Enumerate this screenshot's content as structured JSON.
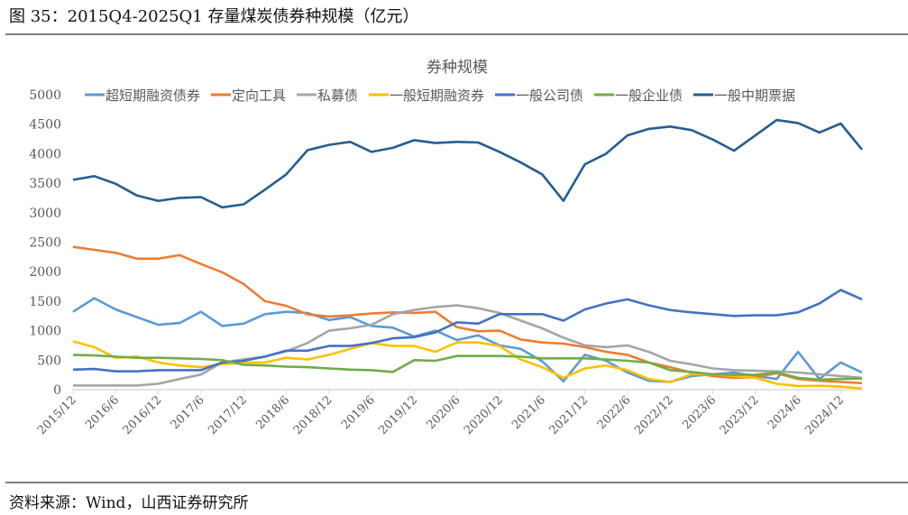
{
  "figure_title": "图 35：2015Q4-2025Q1 存量煤炭债券种规模（亿元）",
  "source": "资料来源：Wind，山西证券研究所",
  "chart_data": {
    "type": "line",
    "title": "券种规模",
    "xlabel": "",
    "ylabel": "",
    "ylim": [
      0,
      5000
    ],
    "yticks": [
      0,
      500,
      1000,
      1500,
      2000,
      2500,
      3000,
      3500,
      4000,
      4500,
      5000
    ],
    "legend_position": "top",
    "grid": false,
    "x": [
      "2015/12",
      "2016/3",
      "2016/6",
      "2016/9",
      "2016/12",
      "2017/3",
      "2017/6",
      "2017/9",
      "2017/12",
      "2018/3",
      "2018/6",
      "2018/9",
      "2018/12",
      "2019/3",
      "2019/6",
      "2019/9",
      "2019/12",
      "2020/3",
      "2020/6",
      "2020/9",
      "2020/12",
      "2021/3",
      "2021/6",
      "2021/9",
      "2021/12",
      "2022/3",
      "2022/6",
      "2022/9",
      "2022/12",
      "2023/3",
      "2023/6",
      "2023/9",
      "2023/12",
      "2024/3",
      "2024/6",
      "2024/9",
      "2024/12",
      "2025/3"
    ],
    "xtick_labels": [
      "2015/12",
      "2016/6",
      "2016/12",
      "2017/6",
      "2017/12",
      "2018/6",
      "2018/12",
      "2019/6",
      "2019/12",
      "2020/6",
      "2020/12",
      "2021/6",
      "2021/12",
      "2022/6",
      "2022/12",
      "2023/6",
      "2023/12",
      "2024/6",
      "2024/12"
    ],
    "series": [
      {
        "name": "超短期融资债券",
        "color": "#5b9bd5",
        "values": [
          1320,
          1550,
          1360,
          1230,
          1100,
          1130,
          1320,
          1080,
          1120,
          1280,
          1320,
          1300,
          1180,
          1230,
          1080,
          1050,
          900,
          1000,
          840,
          920,
          750,
          690,
          480,
          140,
          590,
          490,
          290,
          150,
          130,
          230,
          260,
          290,
          230,
          180,
          640,
          180,
          460,
          290
        ]
      },
      {
        "name": "定向工具",
        "color": "#ed7d31",
        "values": [
          2420,
          2370,
          2320,
          2220,
          2220,
          2280,
          2130,
          1990,
          1790,
          1500,
          1420,
          1275,
          1240,
          1260,
          1290,
          1310,
          1300,
          1320,
          1060,
          990,
          1000,
          850,
          800,
          780,
          720,
          640,
          590,
          460,
          380,
          290,
          230,
          200,
          210,
          280,
          180,
          150,
          130,
          110
        ]
      },
      {
        "name": "私募债",
        "color": "#a5a5a5",
        "values": [
          70,
          70,
          70,
          70,
          100,
          180,
          255,
          460,
          510,
          560,
          650,
          790,
          1000,
          1040,
          1100,
          1280,
          1350,
          1400,
          1430,
          1380,
          1300,
          1170,
          1040,
          880,
          750,
          720,
          750,
          640,
          490,
          430,
          360,
          330,
          320,
          310,
          290,
          260,
          230,
          200
        ]
      },
      {
        "name": "一般短期融资券",
        "color": "#ffc000",
        "values": [
          820,
          720,
          540,
          560,
          460,
          410,
          380,
          430,
          460,
          460,
          540,
          510,
          590,
          690,
          790,
          740,
          740,
          640,
          800,
          800,
          740,
          510,
          380,
          200,
          360,
          410,
          330,
          180,
          130,
          260,
          260,
          230,
          200,
          100,
          60,
          65,
          50,
          20
        ]
      },
      {
        "name": "一般公司债",
        "color": "#4472c4",
        "values": [
          340,
          350,
          310,
          310,
          330,
          330,
          330,
          460,
          490,
          560,
          660,
          660,
          740,
          740,
          790,
          870,
          890,
          970,
          1140,
          1120,
          1280,
          1280,
          1280,
          1170,
          1360,
          1460,
          1530,
          1430,
          1350,
          1310,
          1280,
          1250,
          1260,
          1260,
          1310,
          1460,
          1690,
          1530
        ]
      },
      {
        "name": "一般企业债",
        "color": "#70ad47",
        "values": [
          590,
          580,
          560,
          540,
          540,
          530,
          520,
          500,
          420,
          410,
          390,
          380,
          360,
          340,
          330,
          300,
          500,
          490,
          570,
          570,
          570,
          560,
          530,
          530,
          530,
          510,
          490,
          460,
          330,
          300,
          260,
          250,
          250,
          290,
          200,
          170,
          180,
          190
        ]
      },
      {
        "name": "一般中期票据",
        "color": "#255e91",
        "values": [
          3556,
          3620,
          3490,
          3290,
          3200,
          3250,
          3265,
          3090,
          3140,
          3390,
          3650,
          4060,
          4150,
          4200,
          4030,
          4100,
          4230,
          4180,
          4200,
          4190,
          4030,
          3850,
          3650,
          3200,
          3820,
          4000,
          4310,
          4420,
          4460,
          4400,
          4240,
          4050,
          4310,
          4570,
          4520,
          4360,
          4510,
          4070
        ]
      }
    ]
  }
}
